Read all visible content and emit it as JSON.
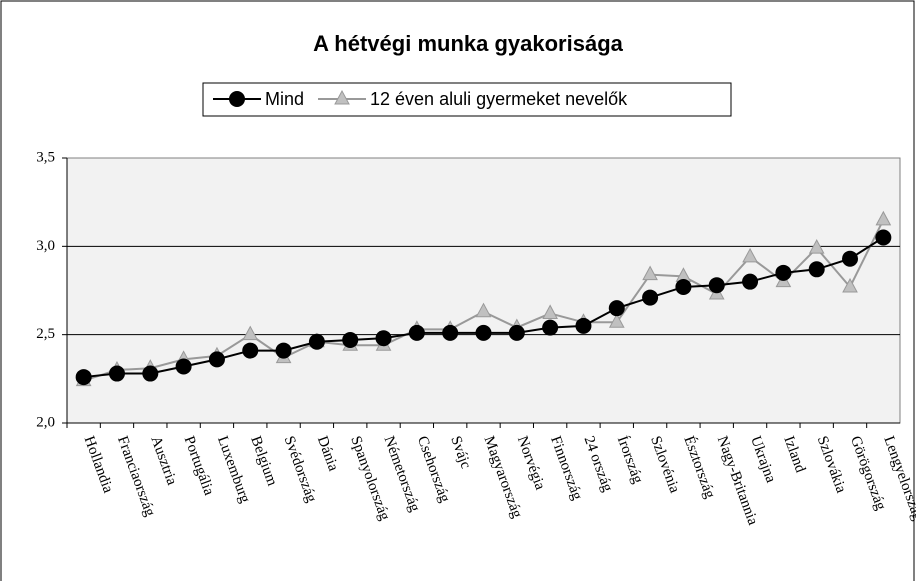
{
  "chart_data": {
    "type": "line",
    "title": "A hétvégi munka gyakorisága",
    "categories": [
      "Hollandia",
      "Franciaország",
      "Ausztria",
      "Portugália",
      "Luxemburg",
      "Belgium",
      "Svédország",
      "Dánia",
      "Spanyolország",
      "Németország",
      "Csehország",
      "Svájc",
      "Magyarország",
      "Norvégia",
      "Finnország",
      "24 ország",
      "Írország",
      "Szlovénia",
      "Észtország",
      "Nagy-Britannia",
      "Ukrajna",
      "Izland",
      "Szlovákia",
      "Görögország",
      "Lengyelország"
    ],
    "series": [
      {
        "name": "Mind",
        "color": "#000000",
        "marker": "circle",
        "values": [
          2.26,
          2.28,
          2.28,
          2.32,
          2.36,
          2.41,
          2.41,
          2.46,
          2.47,
          2.48,
          2.51,
          2.51,
          2.51,
          2.51,
          2.54,
          2.55,
          2.65,
          2.71,
          2.77,
          2.78,
          2.8,
          2.85,
          2.87,
          2.93,
          3.05
        ]
      },
      {
        "name": "12 éven aluli gyermeket nevelők",
        "color": "#999999",
        "marker": "triangle",
        "values": [
          2.24,
          2.3,
          2.31,
          2.36,
          2.38,
          2.5,
          2.37,
          2.46,
          2.44,
          2.44,
          2.53,
          2.53,
          2.63,
          2.54,
          2.62,
          2.57,
          2.57,
          2.84,
          2.83,
          2.73,
          2.94,
          2.8,
          2.99,
          2.77,
          3.15
        ]
      }
    ],
    "ylim": [
      2.0,
      3.5
    ],
    "yticks": [
      {
        "value": 2.0,
        "label": "2,0"
      },
      {
        "value": 2.5,
        "label": "2,5"
      },
      {
        "value": 3.0,
        "label": "3,0"
      },
      {
        "value": 3.5,
        "label": "3,5"
      }
    ],
    "grid": true,
    "legend": "top"
  }
}
